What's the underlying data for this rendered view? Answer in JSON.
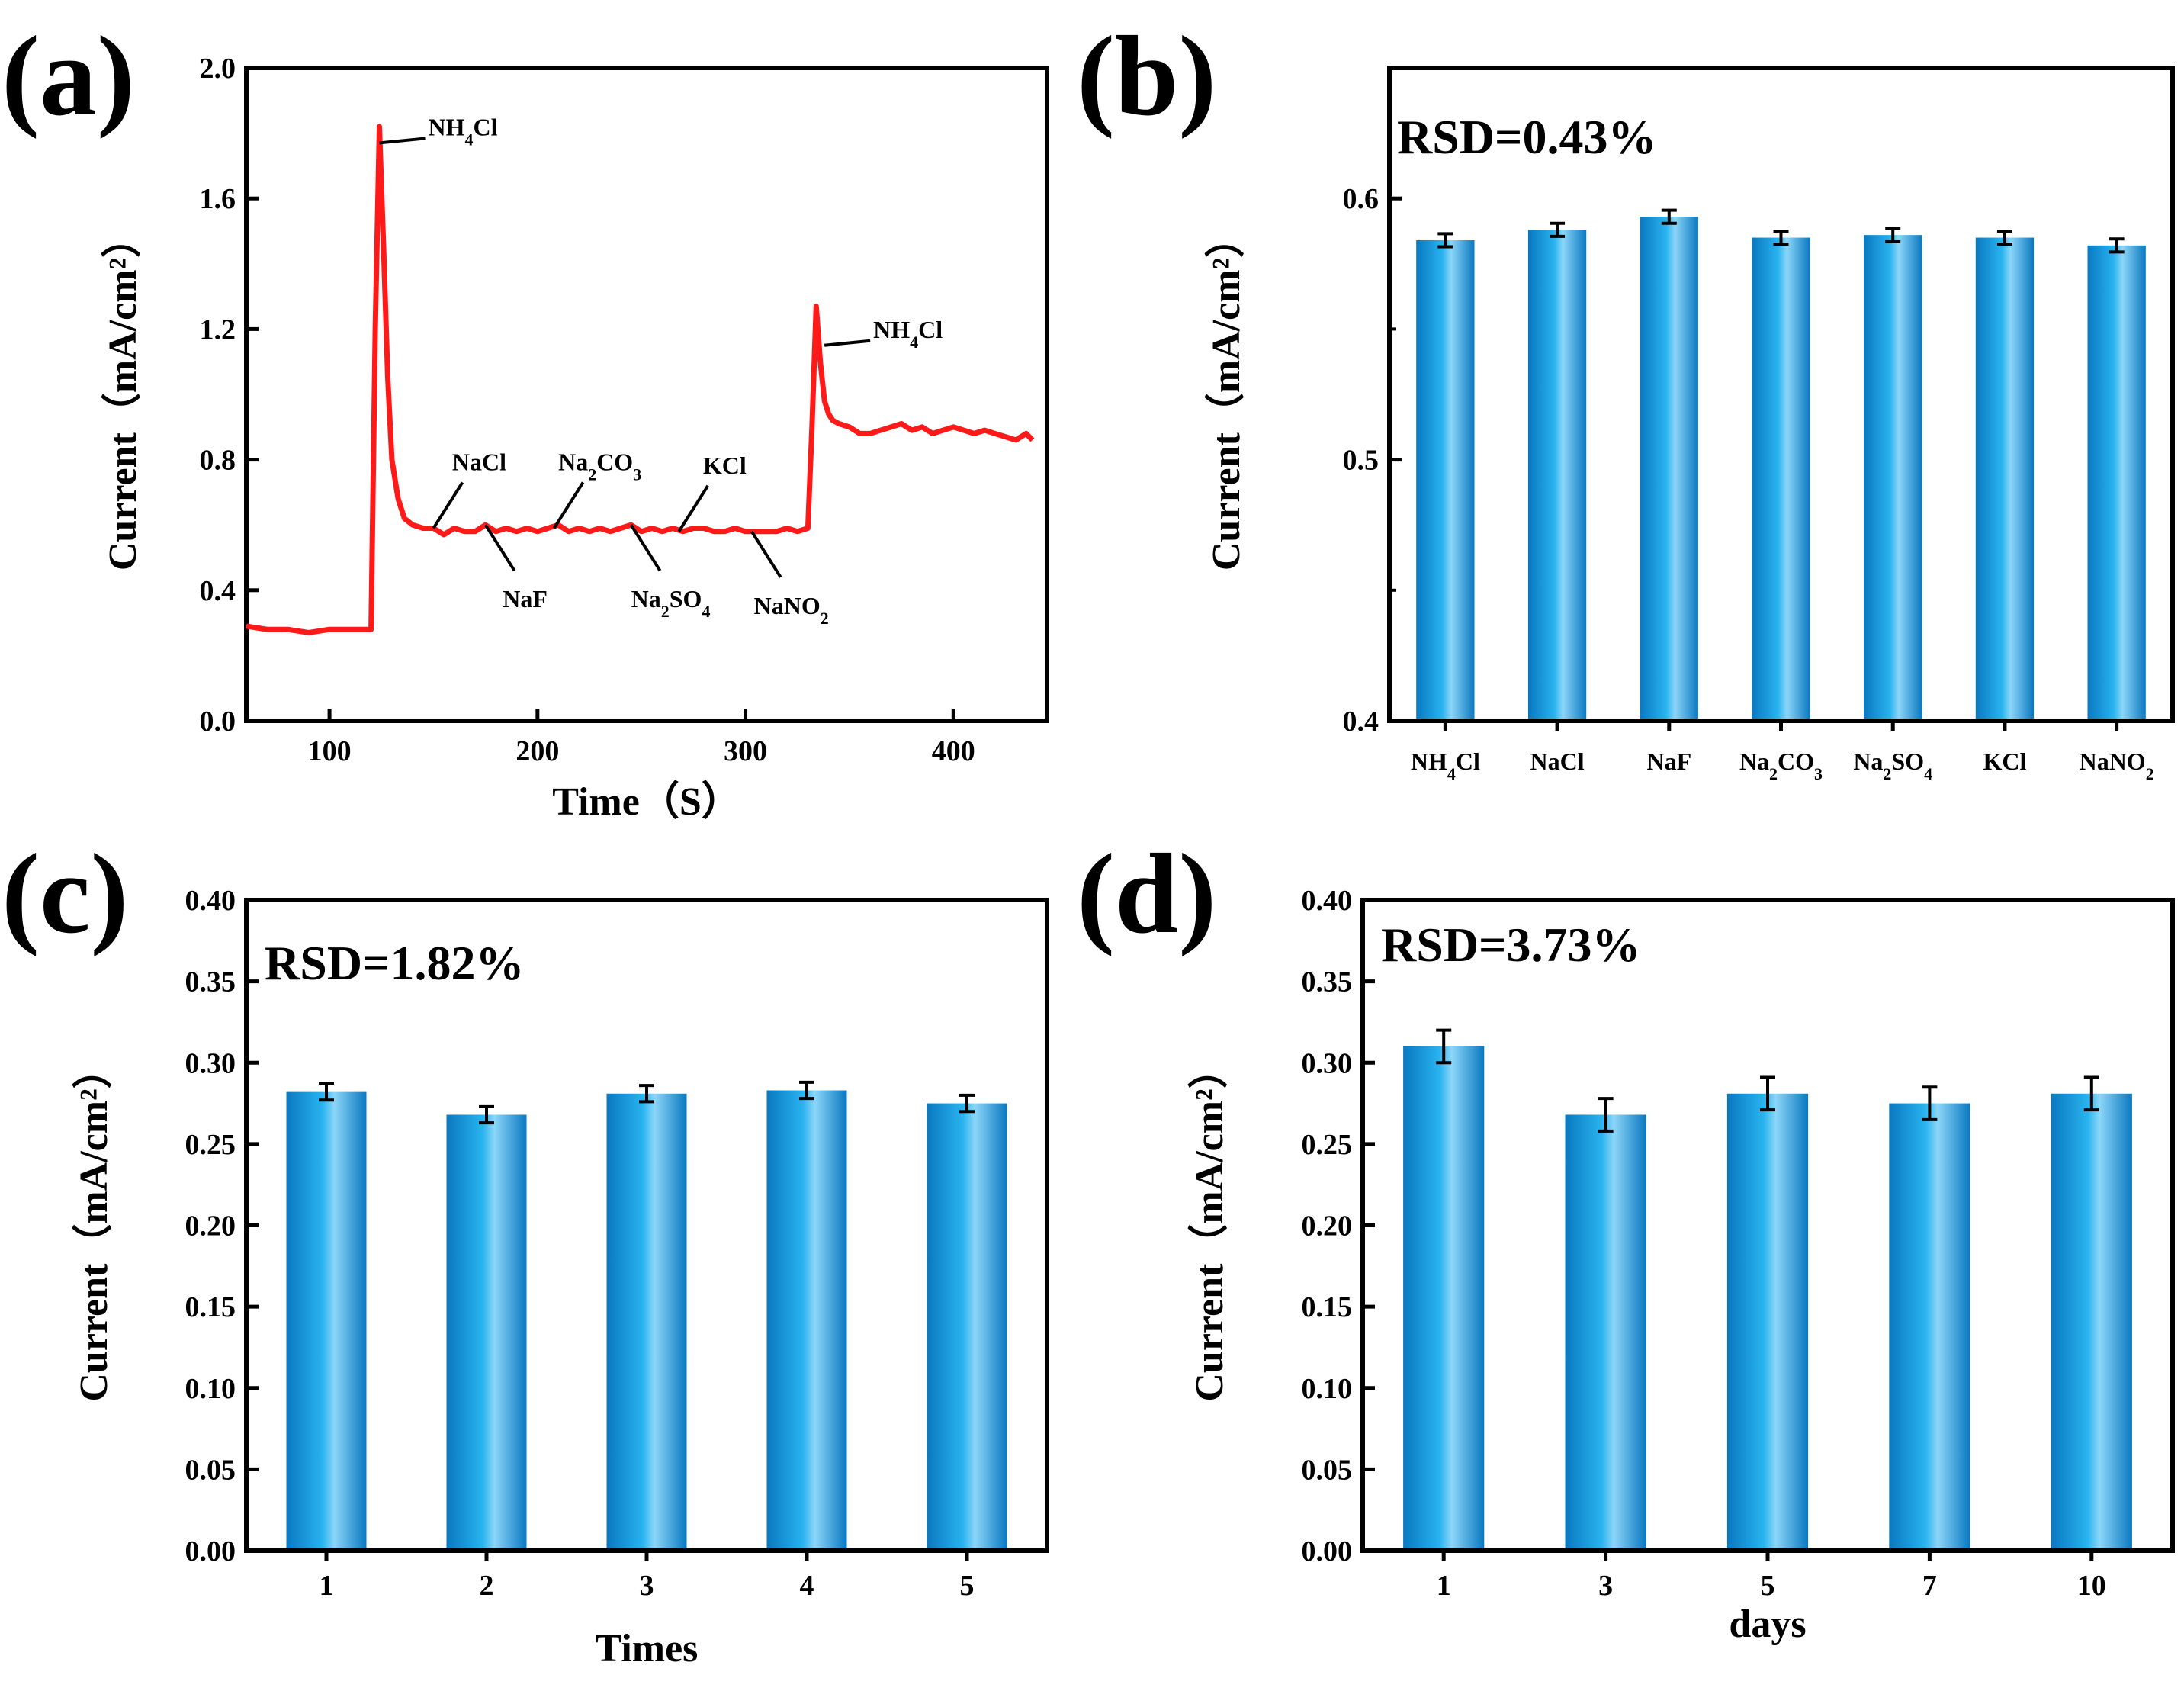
{
  "chart_data": [
    {
      "panel": "(a)",
      "type": "line",
      "xlabel": "Time（S）",
      "ylabel": "Current（mA/cm²）",
      "xlim": [
        60,
        445
      ],
      "ylim": [
        0.0,
        2.0
      ],
      "xticks": [
        100,
        200,
        300,
        400
      ],
      "yticks": [
        0.0,
        0.4,
        0.8,
        1.2,
        1.6,
        2.0
      ],
      "ytick_labels": [
        "0.0",
        "0.4",
        "0.8",
        "1.2",
        "1.6",
        "2.0"
      ],
      "series": [
        {
          "name": "current",
          "color": "#ff1a1a",
          "x": [
            60,
            70,
            80,
            90,
            100,
            110,
            118,
            120,
            122,
            124,
            126,
            128,
            130,
            133,
            136,
            140,
            145,
            150,
            155,
            160,
            165,
            170,
            175,
            180,
            185,
            190,
            195,
            200,
            205,
            210,
            215,
            220,
            225,
            230,
            235,
            240,
            245,
            250,
            255,
            260,
            265,
            270,
            275,
            280,
            285,
            290,
            295,
            300,
            305,
            310,
            315,
            320,
            325,
            330,
            332,
            334,
            336,
            338,
            340,
            342,
            345,
            350,
            355,
            360,
            365,
            370,
            375,
            380,
            385,
            390,
            395,
            400,
            405,
            410,
            415,
            420,
            425,
            430,
            435,
            438
          ],
          "y": [
            0.29,
            0.28,
            0.28,
            0.27,
            0.28,
            0.28,
            0.28,
            0.28,
            1.2,
            1.82,
            1.45,
            1.05,
            0.8,
            0.68,
            0.62,
            0.6,
            0.59,
            0.59,
            0.57,
            0.59,
            0.58,
            0.58,
            0.6,
            0.58,
            0.59,
            0.58,
            0.59,
            0.58,
            0.59,
            0.6,
            0.58,
            0.59,
            0.58,
            0.59,
            0.58,
            0.59,
            0.6,
            0.58,
            0.59,
            0.58,
            0.59,
            0.58,
            0.59,
            0.59,
            0.58,
            0.58,
            0.59,
            0.58,
            0.58,
            0.58,
            0.58,
            0.59,
            0.58,
            0.59,
            0.9,
            1.27,
            1.1,
            0.98,
            0.94,
            0.92,
            0.91,
            0.9,
            0.88,
            0.88,
            0.89,
            0.9,
            0.91,
            0.89,
            0.9,
            0.88,
            0.89,
            0.9,
            0.89,
            0.88,
            0.89,
            0.88,
            0.87,
            0.86,
            0.88,
            0.86
          ]
        }
      ],
      "annotations": [
        {
          "base": "NH",
          "sub": "4",
          "tail": "Cl",
          "x": 124,
          "y": 1.77,
          "side": "above"
        },
        {
          "base": "NaCl",
          "sub": "",
          "tail": "",
          "x": 150,
          "y": 0.59,
          "side": "above"
        },
        {
          "base": "NaF",
          "sub": "",
          "tail": "",
          "x": 175,
          "y": 0.6,
          "side": "below"
        },
        {
          "base": "Na",
          "sub": "2",
          "tail": "CO",
          "sub2": "3",
          "x": 208,
          "y": 0.59,
          "side": "above"
        },
        {
          "base": "Na",
          "sub": "2",
          "tail": "SO",
          "sub2": "4",
          "x": 245,
          "y": 0.6,
          "side": "below"
        },
        {
          "base": "KCl",
          "sub": "",
          "tail": "",
          "x": 268,
          "y": 0.58,
          "side": "above"
        },
        {
          "base": "NaNO",
          "sub": "2",
          "tail": "",
          "x": 303,
          "y": 0.58,
          "side": "below"
        },
        {
          "base": "NH",
          "sub": "4",
          "tail": "Cl",
          "x": 338,
          "y": 1.15,
          "side": "above"
        }
      ]
    },
    {
      "panel": "(b)",
      "type": "bar",
      "rsd": "RSD=0.43%",
      "ylabel": "Current（mA/cm²）",
      "xlabel": "",
      "ylim": [
        0.4,
        0.65
      ],
      "yticks": [
        0.4,
        0.5,
        0.6
      ],
      "ytick_labels": [
        "0.4",
        "0.5",
        "0.6"
      ],
      "categories": [
        {
          "base": "NH",
          "sub": "4",
          "tail": "Cl"
        },
        {
          "base": "NaCl",
          "sub": "",
          "tail": ""
        },
        {
          "base": "NaF",
          "sub": "",
          "tail": ""
        },
        {
          "base": "Na",
          "sub": "2",
          "tail": "CO",
          "sub2": "3"
        },
        {
          "base": "Na",
          "sub": "2",
          "tail": "SO",
          "sub2": "4"
        },
        {
          "base": "KCl",
          "sub": "",
          "tail": ""
        },
        {
          "base": "NaNO",
          "sub": "2",
          "tail": ""
        }
      ],
      "values": [
        0.584,
        0.588,
        0.593,
        0.585,
        0.586,
        0.585,
        0.582
      ],
      "errors": [
        0.0025,
        0.0025,
        0.0025,
        0.0025,
        0.0025,
        0.0025,
        0.0025
      ]
    },
    {
      "panel": "(c)",
      "type": "bar",
      "rsd": "RSD=1.82%",
      "ylabel": "Current（mA/cm²）",
      "xlabel": "Times",
      "ylim": [
        0.0,
        0.4
      ],
      "yticks": [
        0.0,
        0.05,
        0.1,
        0.15,
        0.2,
        0.25,
        0.3,
        0.35,
        0.4
      ],
      "ytick_labels": [
        "0.00",
        "0.05",
        "0.10",
        "0.15",
        "0.20",
        "0.25",
        "0.30",
        "0.35",
        "0.40"
      ],
      "categories": [
        "1",
        "2",
        "3",
        "4",
        "5"
      ],
      "values": [
        0.282,
        0.268,
        0.281,
        0.283,
        0.275
      ],
      "errors": [
        0.005,
        0.005,
        0.005,
        0.005,
        0.005
      ]
    },
    {
      "panel": "(d)",
      "type": "bar",
      "rsd": "RSD=3.73%",
      "ylabel": "Current（mA/cm²）",
      "xlabel": "days",
      "ylim": [
        0.0,
        0.4
      ],
      "yticks": [
        0.0,
        0.05,
        0.1,
        0.15,
        0.2,
        0.25,
        0.3,
        0.35,
        0.4
      ],
      "ytick_labels": [
        "0.00",
        "0.05",
        "0.10",
        "0.15",
        "0.20",
        "0.25",
        "0.30",
        "0.35",
        "0.40"
      ],
      "categories": [
        "1",
        "3",
        "5",
        "7",
        "10"
      ],
      "values": [
        0.31,
        0.268,
        0.281,
        0.275,
        0.281
      ],
      "errors": [
        0.01,
        0.01,
        0.01,
        0.01,
        0.01
      ]
    }
  ],
  "colors": {
    "line": "#ff1a1a",
    "bar_edge": "#0a78c0",
    "bar_mid": "#29b3ef",
    "bar_light": "#8cd6f8",
    "axis": "#000000"
  }
}
